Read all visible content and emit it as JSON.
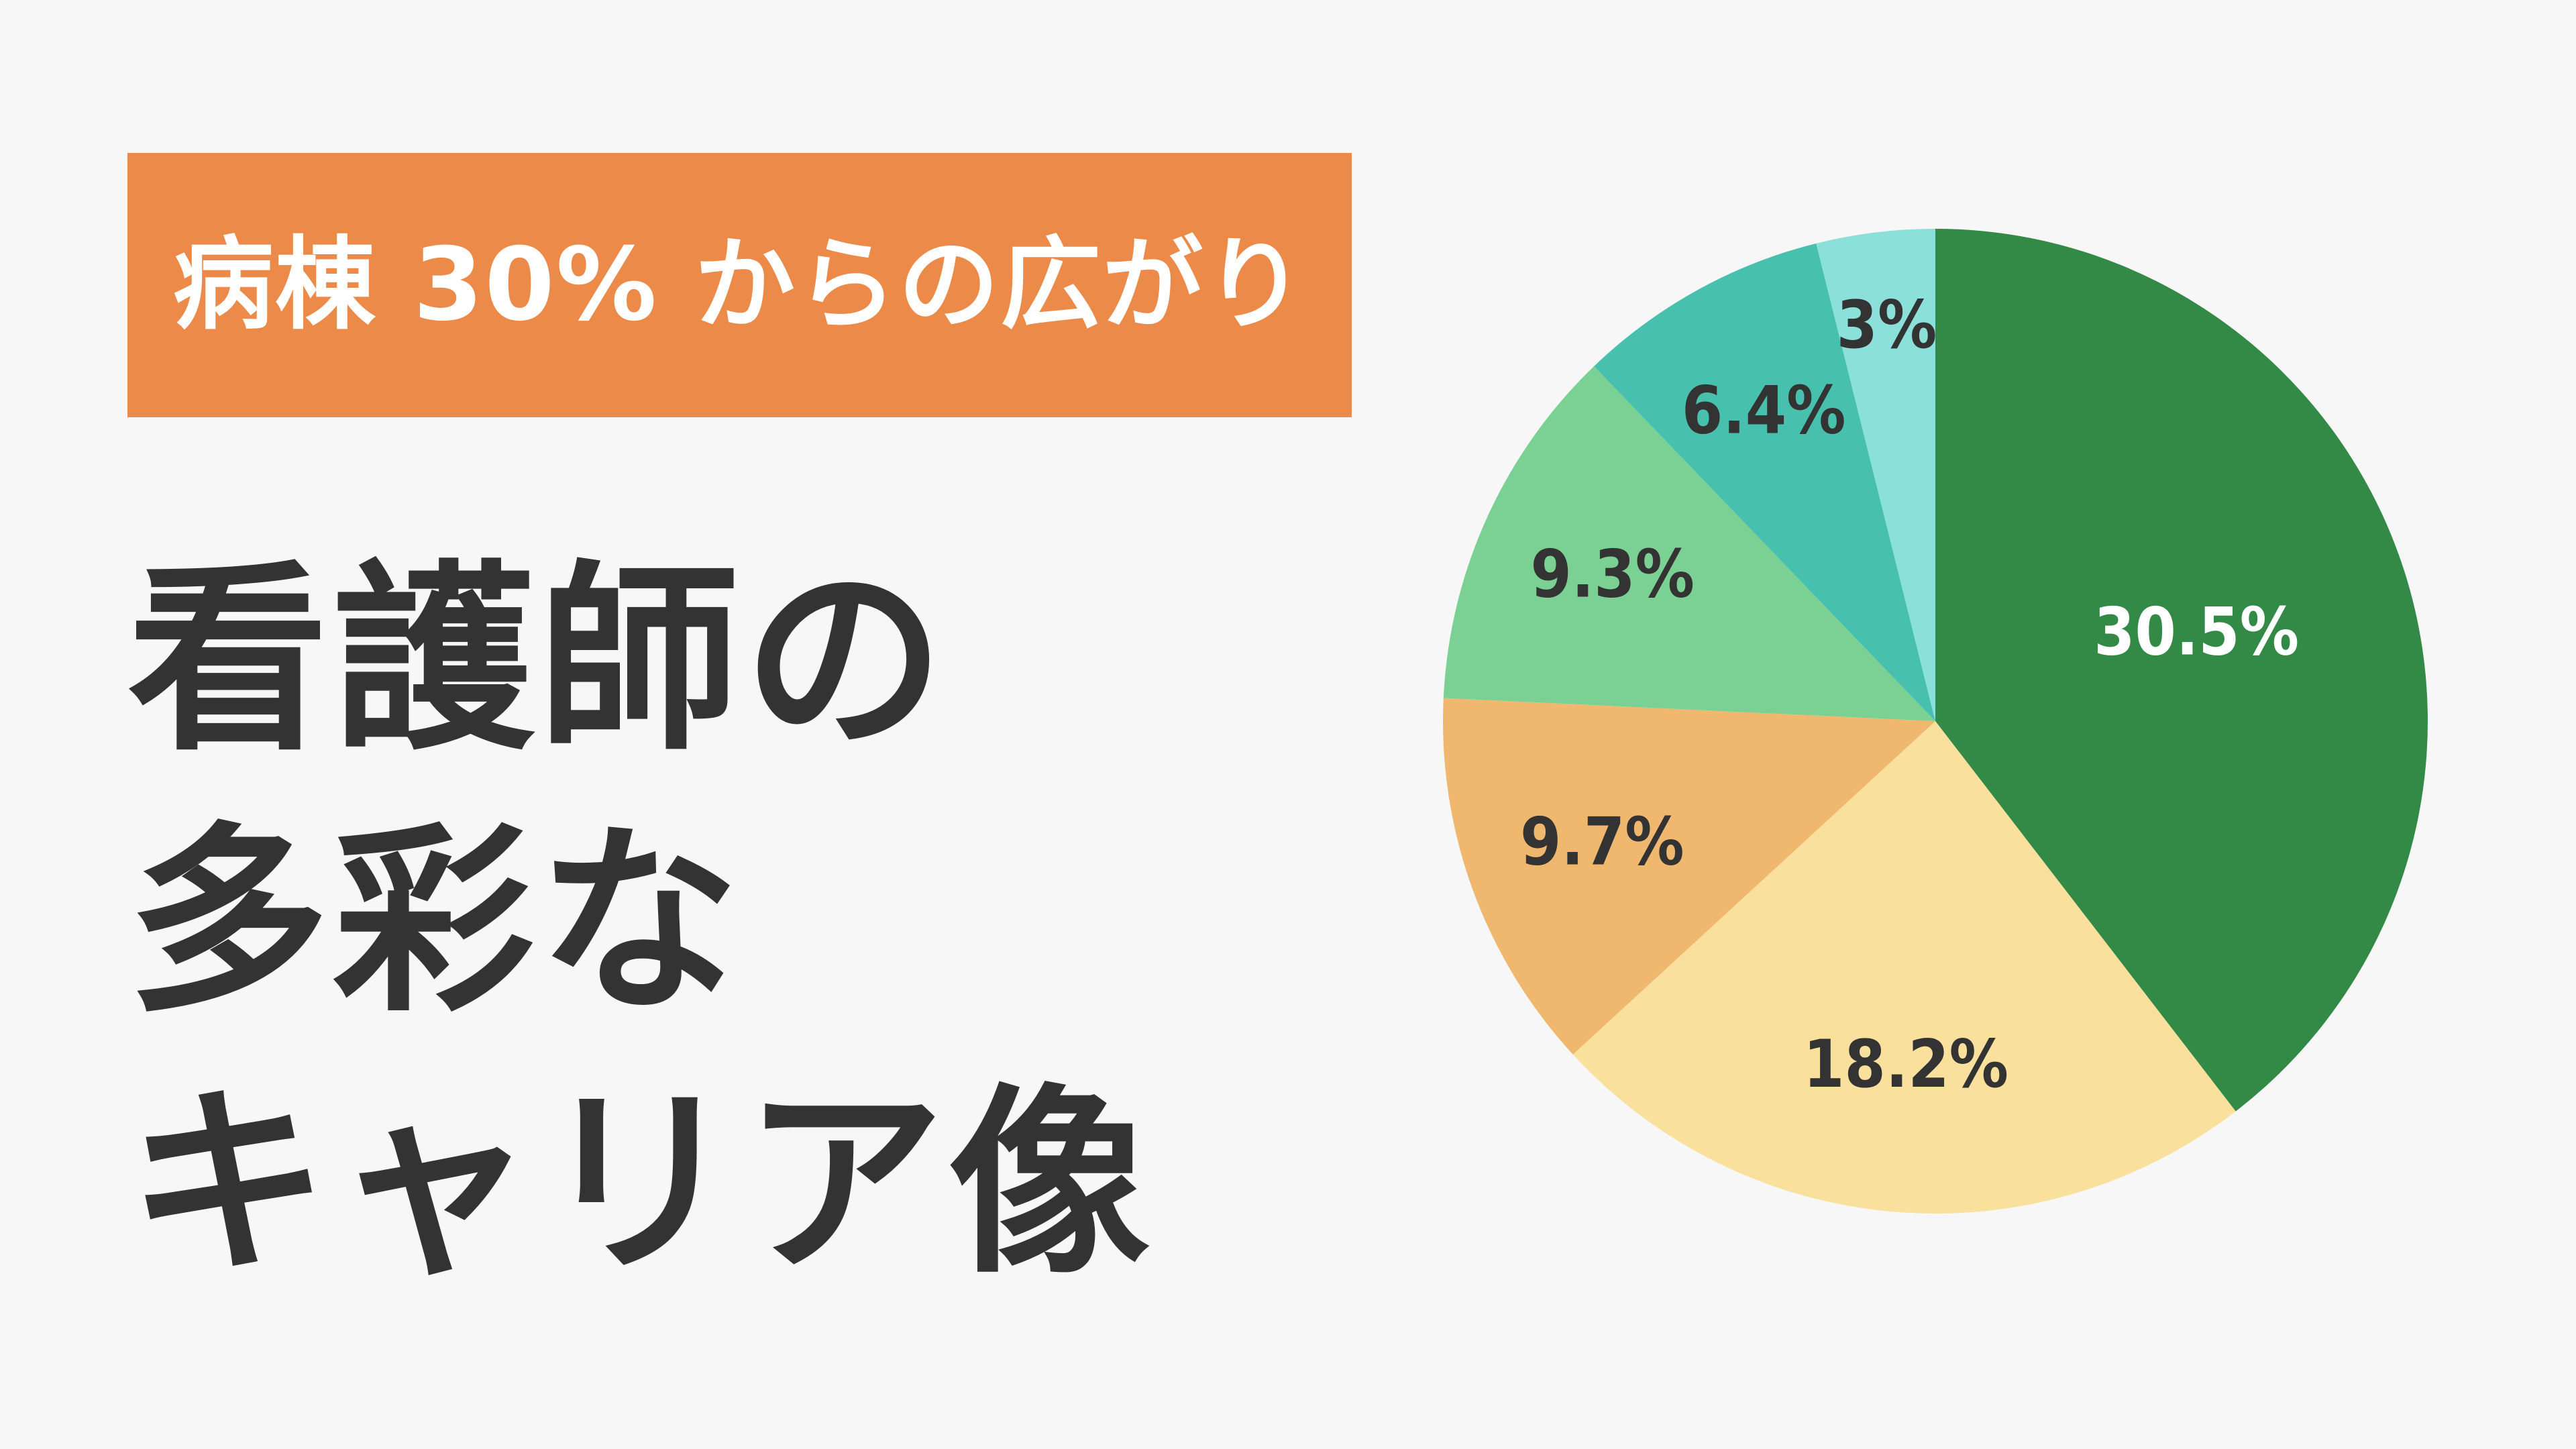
{
  "banner": {
    "text": "病棟 30% からの広がり",
    "color": "#eb8a49"
  },
  "headline": {
    "lines": [
      "看護師の",
      "多彩な",
      "キャリア像"
    ]
  },
  "chart_data": {
    "type": "pie",
    "title": "",
    "start_angle_deg": 0,
    "direction": "clockwise",
    "slices": [
      {
        "label": "30.5%",
        "value": 30.5,
        "color": "#338a47",
        "label_color": "#ffffff"
      },
      {
        "label": "18.2%",
        "value": 18.2,
        "color": "#f9e09c",
        "label_color": "#333333"
      },
      {
        "label": "9.7%",
        "value": 9.7,
        "color": "#efb86e",
        "label_color": "#333333"
      },
      {
        "label": "9.3%",
        "value": 9.3,
        "color": "#7bd194",
        "label_color": "#333333"
      },
      {
        "label": "6.4%",
        "value": 6.4,
        "color": "#47c0ad",
        "label_color": "#333333"
      },
      {
        "label": "3%",
        "value": 3,
        "color": "#8be0da",
        "label_color": "#333333"
      }
    ]
  }
}
